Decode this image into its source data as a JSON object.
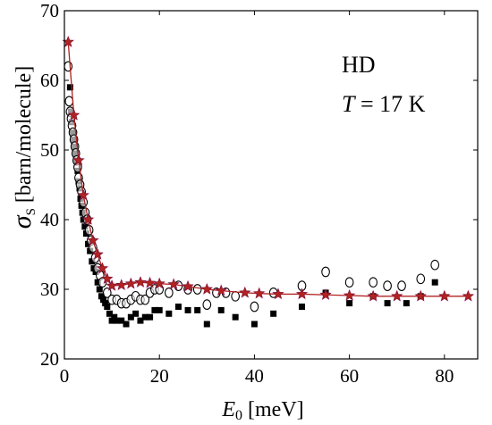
{
  "chart_data": {
    "type": "scatter",
    "xlabel": {
      "symbol": "E",
      "sub": "0",
      "unit": " [meV]"
    },
    "ylabel": {
      "symbol": "σ",
      "sub": "S",
      "unit": " [barn/molecule]"
    },
    "xlim": [
      0,
      87
    ],
    "ylim": [
      20,
      70
    ],
    "xticks": [
      0,
      20,
      40,
      60,
      80
    ],
    "yticks": [
      20,
      30,
      40,
      50,
      60,
      70
    ],
    "grid": false,
    "annotations": [
      {
        "text": "HD"
      },
      {
        "symbol": "T",
        "rest": " = 17 K"
      }
    ],
    "colors": {
      "model": "#b22222",
      "star_fill": "#b22222",
      "star_glow": "#ee44ee"
    },
    "series": [
      {
        "marker": "filled-square",
        "points": [
          [
            1.2,
            59.0
          ],
          [
            1.4,
            55.5
          ],
          [
            1.6,
            54.0
          ],
          [
            1.8,
            52.5
          ],
          [
            2.0,
            51.5
          ],
          [
            2.2,
            50.5
          ],
          [
            2.4,
            49.5
          ],
          [
            2.6,
            48.5
          ],
          [
            2.8,
            47.0
          ],
          [
            3.0,
            45.5
          ],
          [
            3.2,
            44.5
          ],
          [
            3.4,
            43.0
          ],
          [
            3.6,
            42.0
          ],
          [
            3.8,
            41.0
          ],
          [
            4.0,
            40.0
          ],
          [
            4.3,
            39.0
          ],
          [
            4.6,
            38.0
          ],
          [
            5.0,
            36.5
          ],
          [
            5.4,
            35.5
          ],
          [
            5.8,
            34.0
          ],
          [
            6.2,
            33.0
          ],
          [
            6.6,
            32.5
          ],
          [
            7.0,
            31.0
          ],
          [
            7.4,
            30.0
          ],
          [
            7.8,
            29.0
          ],
          [
            8.2,
            28.5
          ],
          [
            8.6,
            28.0
          ],
          [
            9.0,
            27.5
          ],
          [
            9.5,
            26.5
          ],
          [
            10.0,
            25.5
          ],
          [
            10.5,
            26.0
          ],
          [
            11.0,
            25.5
          ],
          [
            12.0,
            25.5
          ],
          [
            13.0,
            25.0
          ],
          [
            14.0,
            26.0
          ],
          [
            15.0,
            26.5
          ],
          [
            16.0,
            25.5
          ],
          [
            17.0,
            26.0
          ],
          [
            18.0,
            26.0
          ],
          [
            19.0,
            27.0
          ],
          [
            20.0,
            27.0
          ],
          [
            22.0,
            26.5
          ],
          [
            24.0,
            27.5
          ],
          [
            26.0,
            27.0
          ],
          [
            28.0,
            27.0
          ],
          [
            30.0,
            25.0
          ],
          [
            33.0,
            27.0
          ],
          [
            36.0,
            26.0
          ],
          [
            40.0,
            25.0
          ],
          [
            44.0,
            26.5
          ],
          [
            50.0,
            27.5
          ],
          [
            55.0,
            29.5
          ],
          [
            60.0,
            28.0
          ],
          [
            65.0,
            29.0
          ],
          [
            68.0,
            28.0
          ],
          [
            72.0,
            28.0
          ],
          [
            75.0,
            29.0
          ],
          [
            78.0,
            31.0
          ]
        ]
      },
      {
        "marker": "open-circle",
        "points": [
          [
            0.8,
            62.0
          ],
          [
            1.0,
            57.0
          ],
          [
            1.2,
            55.5
          ],
          [
            1.4,
            54.5
          ],
          [
            1.6,
            53.5
          ],
          [
            1.8,
            52.5
          ],
          [
            2.0,
            51.5
          ],
          [
            2.2,
            50.5
          ],
          [
            2.4,
            49.5
          ],
          [
            2.6,
            48.5
          ],
          [
            2.8,
            47.5
          ],
          [
            3.0,
            46.0
          ],
          [
            3.3,
            45.0
          ],
          [
            3.6,
            44.0
          ],
          [
            4.0,
            42.5
          ],
          [
            4.4,
            41.0
          ],
          [
            4.8,
            40.0
          ],
          [
            5.2,
            38.5
          ],
          [
            5.6,
            37.0
          ],
          [
            6.0,
            36.0
          ],
          [
            6.5,
            34.5
          ],
          [
            7.0,
            33.0
          ],
          [
            7.5,
            32.0
          ],
          [
            8.0,
            31.0
          ],
          [
            9.0,
            29.5
          ],
          [
            10.0,
            28.5
          ],
          [
            11.0,
            28.5
          ],
          [
            12.0,
            28.0
          ],
          [
            13.0,
            28.0
          ],
          [
            14.0,
            28.5
          ],
          [
            15.0,
            29.0
          ],
          [
            16.0,
            28.5
          ],
          [
            17.0,
            28.5
          ],
          [
            18.0,
            29.5
          ],
          [
            19.0,
            30.0
          ],
          [
            20.0,
            30.0
          ],
          [
            22.0,
            29.5
          ],
          [
            24.0,
            30.5
          ],
          [
            26.0,
            30.0
          ],
          [
            28.0,
            30.0
          ],
          [
            30.0,
            27.8
          ],
          [
            32.0,
            29.5
          ],
          [
            34.0,
            29.5
          ],
          [
            36.0,
            29.0
          ],
          [
            40.0,
            27.5
          ],
          [
            44.0,
            29.5
          ],
          [
            50.0,
            30.5
          ],
          [
            55.0,
            32.5
          ],
          [
            60.0,
            31.0
          ],
          [
            65.0,
            31.0
          ],
          [
            68.0,
            30.5
          ],
          [
            71.0,
            30.5
          ],
          [
            75.0,
            31.5
          ],
          [
            78.0,
            33.5
          ]
        ]
      },
      {
        "marker": "star-line",
        "points": [
          [
            0.8,
            65.5
          ],
          [
            2.0,
            55.0
          ],
          [
            3.0,
            48.5
          ],
          [
            4.0,
            43.5
          ],
          [
            5.0,
            40.0
          ],
          [
            6.0,
            37.0
          ],
          [
            7.0,
            35.0
          ],
          [
            8.0,
            33.0
          ],
          [
            9.0,
            31.5
          ],
          [
            10.0,
            30.5
          ],
          [
            12.0,
            30.6
          ],
          [
            14.0,
            30.8
          ],
          [
            16.0,
            31.0
          ],
          [
            18.0,
            30.9
          ],
          [
            20.0,
            30.8
          ],
          [
            23.0,
            30.7
          ],
          [
            26.0,
            30.4
          ],
          [
            30.0,
            30.0
          ],
          [
            33.0,
            29.8
          ],
          [
            38.0,
            29.5
          ],
          [
            41.0,
            29.4
          ],
          [
            45.0,
            29.3
          ],
          [
            50.0,
            29.3
          ],
          [
            55.0,
            29.2
          ],
          [
            60.0,
            29.1
          ],
          [
            65.0,
            29.0
          ],
          [
            70.0,
            29.0
          ],
          [
            75.0,
            29.0
          ],
          [
            80.0,
            29.0
          ],
          [
            85.0,
            29.0
          ]
        ]
      }
    ]
  }
}
